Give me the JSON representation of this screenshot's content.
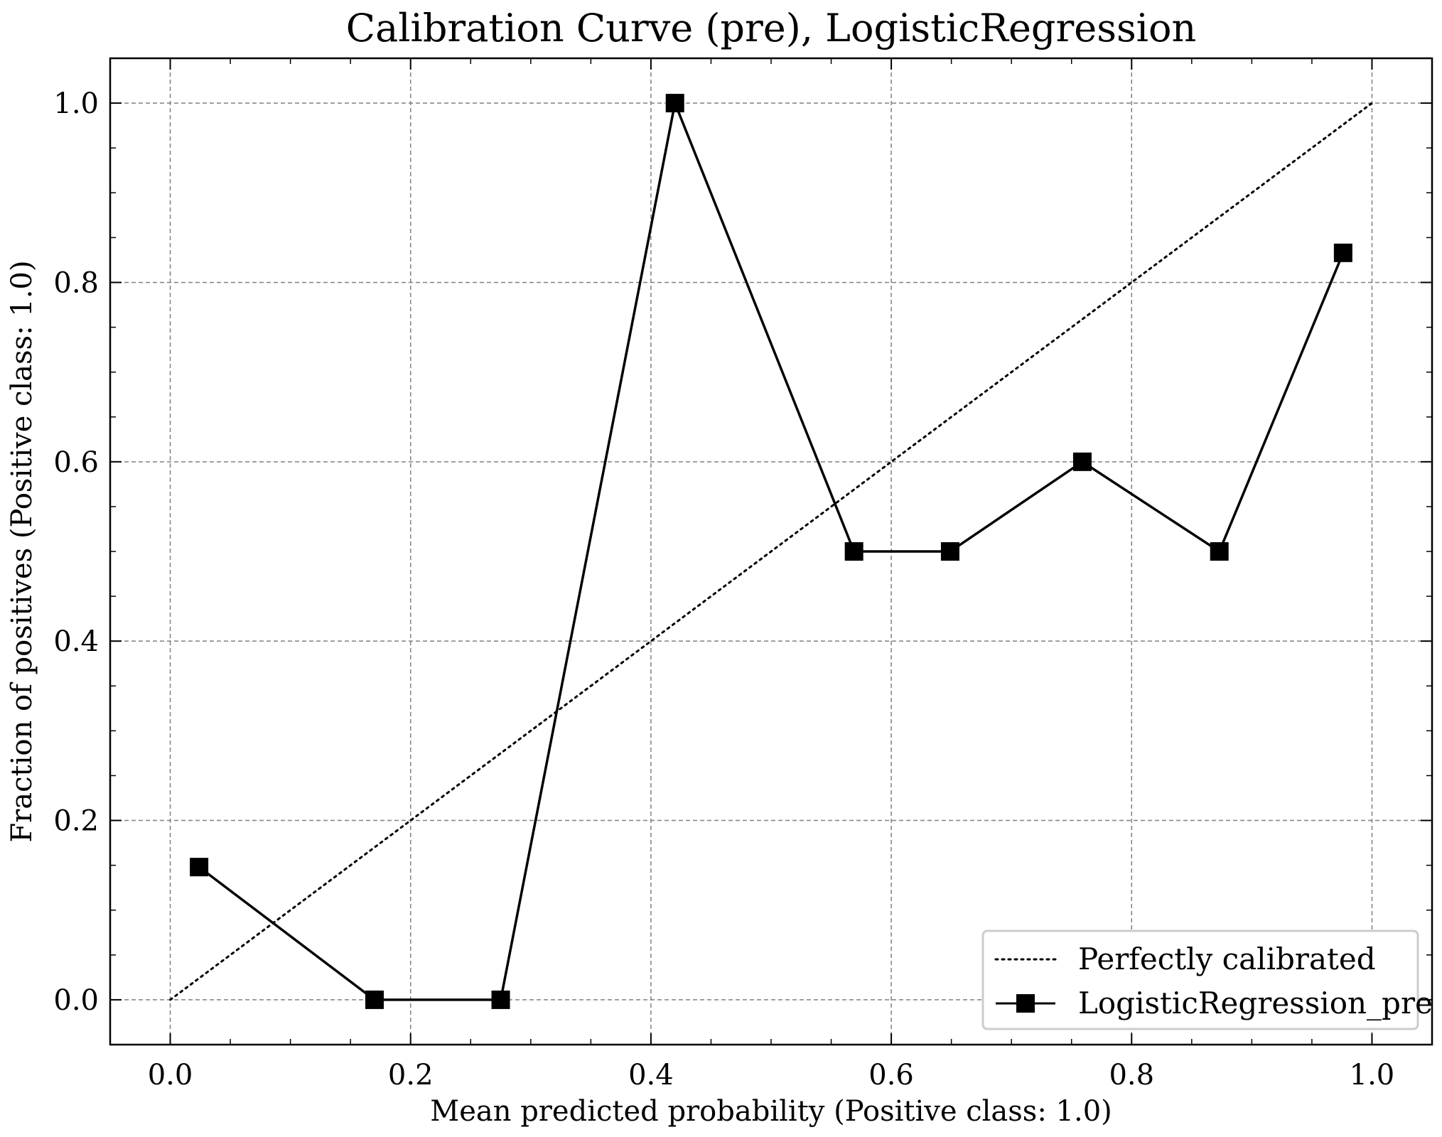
{
  "chart_data": {
    "type": "line",
    "title": "Calibration Curve (pre), LogisticRegression",
    "xlabel": "Mean predicted probability (Positive class: 1.0)",
    "ylabel": "Fraction of positives (Positive class: 1.0)",
    "xlim": [
      -0.05,
      1.05
    ],
    "ylim": [
      -0.05,
      1.05
    ],
    "xticks": [
      "0.0",
      "0.2",
      "0.4",
      "0.6",
      "0.8",
      "1.0"
    ],
    "yticks": [
      "0.0",
      "0.2",
      "0.4",
      "0.6",
      "0.8",
      "1.0"
    ],
    "grid": true,
    "legend_position": "bottom-right",
    "series": [
      {
        "name": "Perfectly calibrated",
        "style": "dotted",
        "color": "#000000",
        "marker": "none",
        "x": [
          0.0,
          1.0
        ],
        "y": [
          0.0,
          1.0
        ]
      },
      {
        "name": "LogisticRegression_pre",
        "style": "solid",
        "color": "#000000",
        "marker": "square",
        "x": [
          0.024,
          0.17,
          0.275,
          0.42,
          0.569,
          0.649,
          0.759,
          0.873,
          0.976
        ],
        "y": [
          0.148,
          0.0,
          0.0,
          1.0,
          0.5,
          0.5,
          0.6,
          0.5,
          0.833
        ]
      }
    ]
  }
}
